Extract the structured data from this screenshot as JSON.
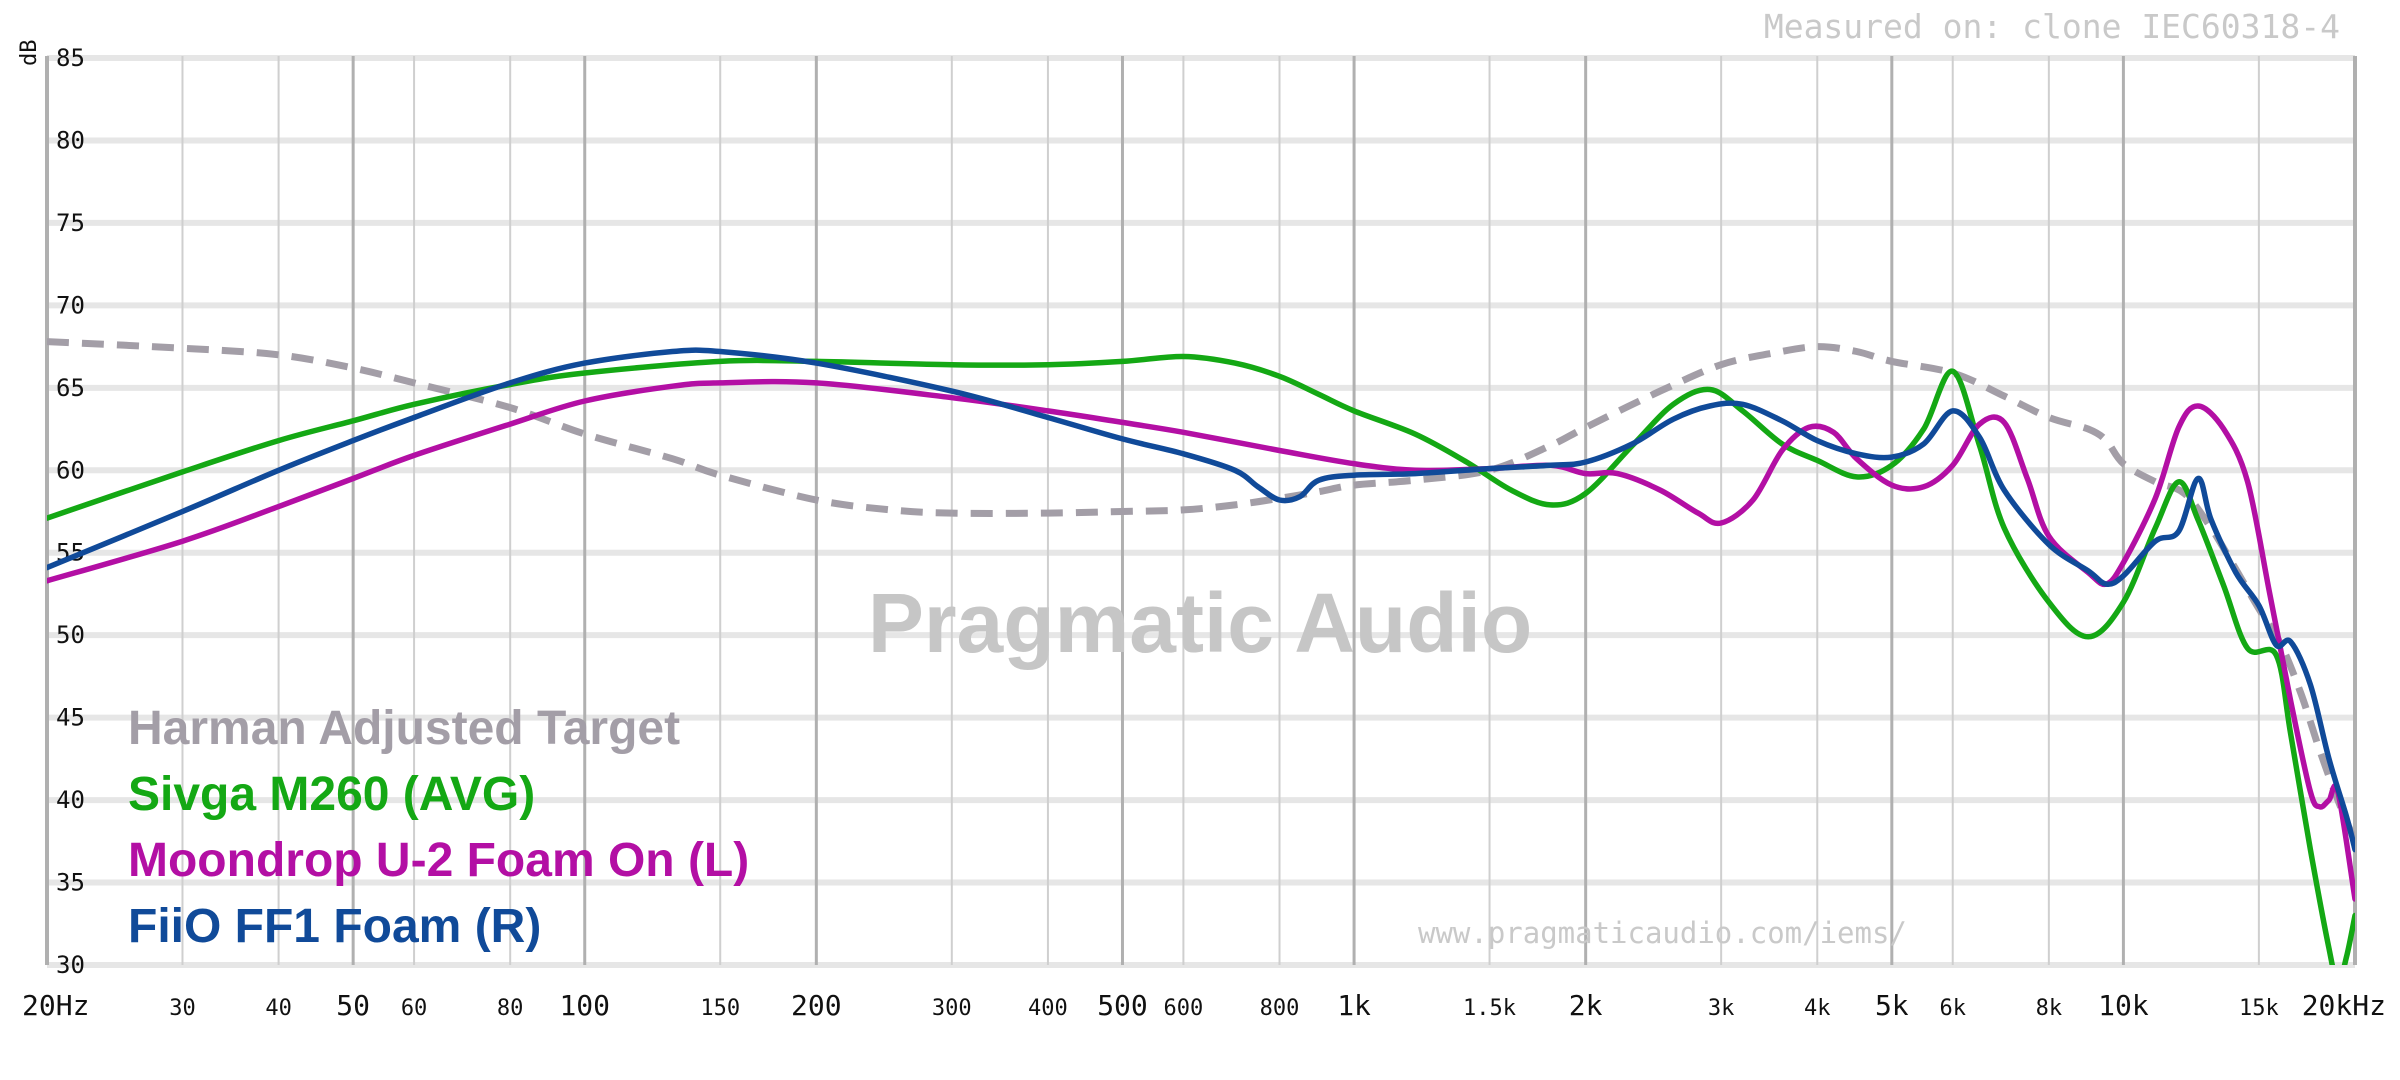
{
  "chart_data": {
    "type": "line",
    "ylabel": "dB",
    "ylim": [
      30,
      85
    ],
    "x_scale": "log",
    "xlim": [
      20,
      20000
    ],
    "y_ticks": [
      85,
      80,
      75,
      70,
      65,
      60,
      55,
      50,
      45,
      40,
      35,
      30
    ],
    "x_ticks": [
      {
        "value": 20,
        "label": "20Hz",
        "major": true
      },
      {
        "value": 30,
        "label": "30",
        "major": false
      },
      {
        "value": 40,
        "label": "40",
        "major": false
      },
      {
        "value": 50,
        "label": "50",
        "major": true
      },
      {
        "value": 60,
        "label": "60",
        "major": false
      },
      {
        "value": 80,
        "label": "80",
        "major": false
      },
      {
        "value": 100,
        "label": "100",
        "major": true
      },
      {
        "value": 150,
        "label": "150",
        "major": false
      },
      {
        "value": 200,
        "label": "200",
        "major": true
      },
      {
        "value": 300,
        "label": "300",
        "major": false
      },
      {
        "value": 400,
        "label": "400",
        "major": false
      },
      {
        "value": 500,
        "label": "500",
        "major": true
      },
      {
        "value": 600,
        "label": "600",
        "major": false
      },
      {
        "value": 800,
        "label": "800",
        "major": false
      },
      {
        "value": 1000,
        "label": "1k",
        "major": true
      },
      {
        "value": 1500,
        "label": "1.5k",
        "major": false
      },
      {
        "value": 2000,
        "label": "2k",
        "major": true
      },
      {
        "value": 3000,
        "label": "3k",
        "major": false
      },
      {
        "value": 4000,
        "label": "4k",
        "major": false
      },
      {
        "value": 5000,
        "label": "5k",
        "major": true
      },
      {
        "value": 6000,
        "label": "6k",
        "major": false
      },
      {
        "value": 8000,
        "label": "8k",
        "major": false
      },
      {
        "value": 10000,
        "label": "10k",
        "major": true
      },
      {
        "value": 15000,
        "label": "15k",
        "major": false
      },
      {
        "value": 20000,
        "label": "20kHz",
        "major": true
      }
    ],
    "grid": true,
    "legend_position": "bottom-left",
    "series": [
      {
        "name": "Harman Adjusted Target",
        "color": "#a39ea7",
        "dashed": true,
        "points": [
          [
            20,
            67.8
          ],
          [
            30,
            67.4
          ],
          [
            40,
            67.0
          ],
          [
            50,
            66.2
          ],
          [
            60,
            65.3
          ],
          [
            80,
            63.8
          ],
          [
            100,
            62.2
          ],
          [
            130,
            60.7
          ],
          [
            150,
            59.7
          ],
          [
            200,
            58.2
          ],
          [
            250,
            57.6
          ],
          [
            300,
            57.4
          ],
          [
            400,
            57.4
          ],
          [
            500,
            57.5
          ],
          [
            600,
            57.6
          ],
          [
            700,
            57.9
          ],
          [
            800,
            58.3
          ],
          [
            900,
            58.7
          ],
          [
            1000,
            59.1
          ],
          [
            1200,
            59.4
          ],
          [
            1500,
            60.0
          ],
          [
            1800,
            61.5
          ],
          [
            2000,
            62.6
          ],
          [
            2500,
            64.8
          ],
          [
            3000,
            66.4
          ],
          [
            3500,
            67.1
          ],
          [
            4000,
            67.5
          ],
          [
            4500,
            67.2
          ],
          [
            5000,
            66.6
          ],
          [
            6000,
            65.9
          ],
          [
            7000,
            64.5
          ],
          [
            8000,
            63.2
          ],
          [
            9000,
            62.5
          ],
          [
            9500,
            61.8
          ],
          [
            10000,
            60.4
          ],
          [
            11000,
            59.3
          ],
          [
            12000,
            58.6
          ],
          [
            13000,
            56.5
          ],
          [
            14000,
            54.0
          ],
          [
            15000,
            51.6
          ],
          [
            16000,
            49.5
          ],
          [
            17000,
            46.5
          ],
          [
            18000,
            43.0
          ],
          [
            19000,
            40.0
          ],
          [
            20000,
            37.5
          ]
        ]
      },
      {
        "name": "Sivga M260 (AVG)",
        "color": "#14a814",
        "dashed": false,
        "points": [
          [
            20,
            57.1
          ],
          [
            30,
            59.9
          ],
          [
            40,
            61.8
          ],
          [
            50,
            63.0
          ],
          [
            60,
            64.0
          ],
          [
            80,
            65.2
          ],
          [
            100,
            65.9
          ],
          [
            150,
            66.6
          ],
          [
            200,
            66.6
          ],
          [
            300,
            66.4
          ],
          [
            400,
            66.4
          ],
          [
            500,
            66.6
          ],
          [
            600,
            66.9
          ],
          [
            700,
            66.5
          ],
          [
            800,
            65.7
          ],
          [
            900,
            64.6
          ],
          [
            1000,
            63.6
          ],
          [
            1200,
            62.2
          ],
          [
            1400,
            60.5
          ],
          [
            1600,
            58.8
          ],
          [
            1800,
            57.9
          ],
          [
            2000,
            58.6
          ],
          [
            2300,
            61.5
          ],
          [
            2600,
            64.0
          ],
          [
            2900,
            64.9
          ],
          [
            3200,
            63.6
          ],
          [
            3600,
            61.6
          ],
          [
            4000,
            60.6
          ],
          [
            4500,
            59.6
          ],
          [
            5000,
            60.3
          ],
          [
            5500,
            62.5
          ],
          [
            6000,
            66.0
          ],
          [
            6500,
            61.5
          ],
          [
            7000,
            56.5
          ],
          [
            8000,
            52.0
          ],
          [
            9000,
            49.9
          ],
          [
            10000,
            52.0
          ],
          [
            11000,
            56.5
          ],
          [
            11800,
            59.3
          ],
          [
            12500,
            57.0
          ],
          [
            13500,
            53.0
          ],
          [
            14500,
            49.2
          ],
          [
            15800,
            48.8
          ],
          [
            16500,
            44.0
          ],
          [
            17500,
            37.0
          ],
          [
            18500,
            31.0
          ],
          [
            19000,
            28.9
          ],
          [
            19500,
            30.5
          ],
          [
            20000,
            33.0
          ]
        ]
      },
      {
        "name": "Moondrop U-2 Foam On (L)",
        "color": "#b30fa4",
        "dashed": false,
        "points": [
          [
            20,
            53.3
          ],
          [
            30,
            55.7
          ],
          [
            40,
            57.8
          ],
          [
            50,
            59.5
          ],
          [
            60,
            60.9
          ],
          [
            80,
            62.8
          ],
          [
            100,
            64.2
          ],
          [
            130,
            65.1
          ],
          [
            150,
            65.3
          ],
          [
            200,
            65.3
          ],
          [
            300,
            64.4
          ],
          [
            400,
            63.6
          ],
          [
            500,
            62.9
          ],
          [
            600,
            62.3
          ],
          [
            800,
            61.2
          ],
          [
            1000,
            60.4
          ],
          [
            1200,
            60.0
          ],
          [
            1500,
            60.1
          ],
          [
            1800,
            60.3
          ],
          [
            2000,
            59.8
          ],
          [
            2200,
            59.8
          ],
          [
            2500,
            58.8
          ],
          [
            2800,
            57.4
          ],
          [
            3000,
            56.8
          ],
          [
            3300,
            58.2
          ],
          [
            3600,
            61.2
          ],
          [
            3900,
            62.6
          ],
          [
            4200,
            62.3
          ],
          [
            4500,
            60.7
          ],
          [
            5000,
            59.1
          ],
          [
            5500,
            59.0
          ],
          [
            6000,
            60.3
          ],
          [
            6500,
            62.8
          ],
          [
            7000,
            62.9
          ],
          [
            7500,
            59.5
          ],
          [
            8000,
            56.0
          ],
          [
            9000,
            53.8
          ],
          [
            9500,
            53.1
          ],
          [
            10000,
            54.4
          ],
          [
            11000,
            58.3
          ],
          [
            11800,
            62.6
          ],
          [
            12500,
            63.9
          ],
          [
            13500,
            62.5
          ],
          [
            14500,
            59.3
          ],
          [
            15500,
            52.5
          ],
          [
            16500,
            46.0
          ],
          [
            17500,
            40.5
          ],
          [
            18000,
            39.6
          ],
          [
            18500,
            40.0
          ],
          [
            19000,
            40.5
          ],
          [
            20000,
            34.0
          ]
        ]
      },
      {
        "name": "FiiO FF1 Foam (R)",
        "color": "#104a99",
        "dashed": false,
        "points": [
          [
            20,
            54.1
          ],
          [
            30,
            57.5
          ],
          [
            40,
            60.0
          ],
          [
            50,
            61.8
          ],
          [
            60,
            63.2
          ],
          [
            80,
            65.3
          ],
          [
            100,
            66.5
          ],
          [
            130,
            67.2
          ],
          [
            150,
            67.2
          ],
          [
            200,
            66.5
          ],
          [
            300,
            64.8
          ],
          [
            400,
            63.2
          ],
          [
            500,
            61.9
          ],
          [
            600,
            61.0
          ],
          [
            700,
            60.0
          ],
          [
            750,
            59.0
          ],
          [
            800,
            58.2
          ],
          [
            850,
            58.4
          ],
          [
            900,
            59.4
          ],
          [
            1000,
            59.7
          ],
          [
            1200,
            59.8
          ],
          [
            1500,
            60.1
          ],
          [
            1800,
            60.3
          ],
          [
            2000,
            60.5
          ],
          [
            2300,
            61.6
          ],
          [
            2600,
            63.1
          ],
          [
            2900,
            63.9
          ],
          [
            3200,
            64.0
          ],
          [
            3600,
            63.0
          ],
          [
            4000,
            61.8
          ],
          [
            4500,
            61.0
          ],
          [
            5000,
            60.8
          ],
          [
            5500,
            61.6
          ],
          [
            6000,
            63.6
          ],
          [
            6500,
            62.0
          ],
          [
            7000,
            58.8
          ],
          [
            8000,
            55.5
          ],
          [
            9000,
            53.9
          ],
          [
            9500,
            53.1
          ],
          [
            10000,
            53.6
          ],
          [
            11000,
            55.7
          ],
          [
            11800,
            56.3
          ],
          [
            12500,
            59.5
          ],
          [
            13000,
            57.0
          ],
          [
            14000,
            53.8
          ],
          [
            15000,
            51.8
          ],
          [
            15800,
            49.4
          ],
          [
            16500,
            49.6
          ],
          [
            17500,
            47.0
          ],
          [
            18500,
            42.5
          ],
          [
            19500,
            39.0
          ],
          [
            20000,
            37.0
          ]
        ]
      }
    ]
  },
  "watermark": "Pragmatic Audio",
  "measured_note": "Measured on: clone IEC60318-4",
  "source_url": "www.pragmaticaudio.com/iems/",
  "legend": [
    {
      "label": "Harman Adjusted Target",
      "color": "#a39ea7"
    },
    {
      "label": "Sivga M260 (AVG)",
      "color": "#14a814"
    },
    {
      "label": "Moondrop U-2 Foam On (L)",
      "color": "#b30fa4"
    },
    {
      "label": "FiiO FF1 Foam (R)",
      "color": "#104a99"
    }
  ]
}
